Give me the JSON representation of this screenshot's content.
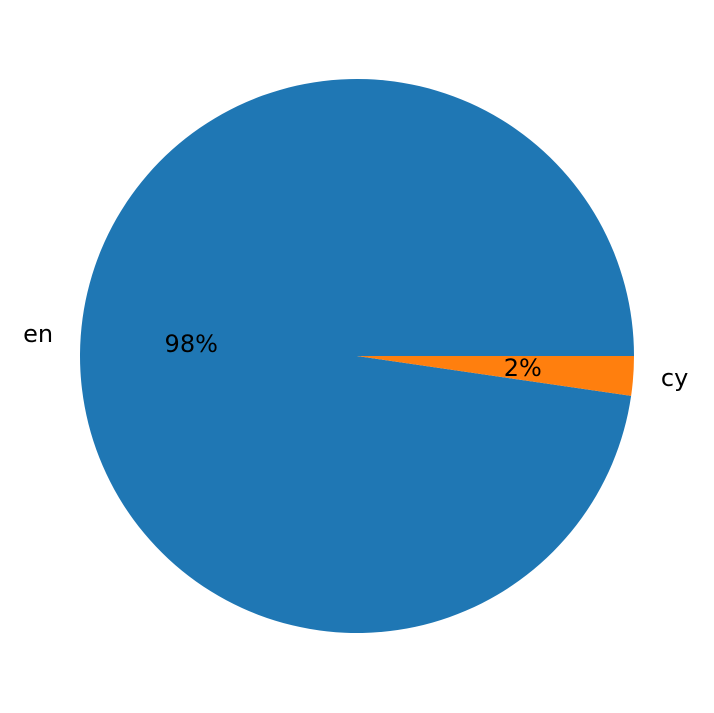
{
  "chart_data": {
    "type": "pie",
    "title": "",
    "start_angle_deg": 0,
    "counterclockwise": true,
    "slices": [
      {
        "label": "en",
        "value": 97.7,
        "pct_label": "98%",
        "color": "#1f77b4"
      },
      {
        "label": "cy",
        "value": 2.3,
        "pct_label": "2%",
        "color": "#ff7f0e"
      }
    ]
  }
}
